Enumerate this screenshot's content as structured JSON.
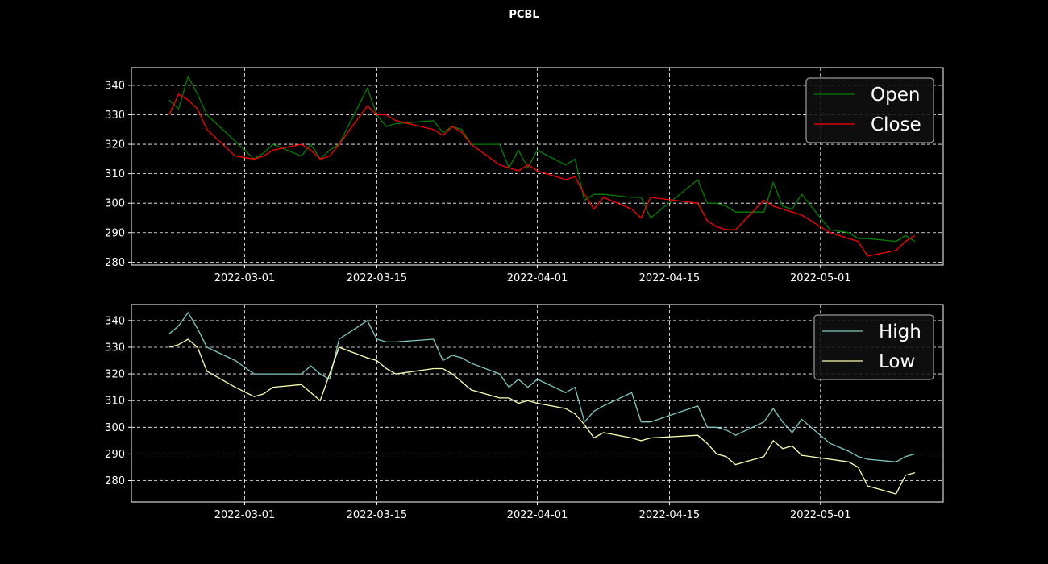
{
  "title": "PCBL",
  "colors": {
    "background": "#000000",
    "open": "#008000",
    "close": "#ff0000",
    "high": "#7fc9c1",
    "low": "#ffffb3",
    "grid": "#ffffff"
  },
  "chart_data": [
    {
      "type": "line",
      "title": "",
      "xlabel": "",
      "ylabel": "",
      "ylim": [
        279,
        346
      ],
      "xlim": [
        "2022-02-17",
        "2022-05-14"
      ],
      "x_ticks": [
        "2022-03-01",
        "2022-03-15",
        "2022-04-01",
        "2022-04-15",
        "2022-05-01"
      ],
      "y_ticks": [
        280,
        290,
        300,
        310,
        320,
        330,
        340
      ],
      "grid": true,
      "legend": "top-right",
      "series": [
        {
          "name": "Open",
          "x": [
            "2022-02-21",
            "2022-02-22",
            "2022-02-23",
            "2022-02-24",
            "2022-02-25",
            "2022-02-28",
            "2022-03-02",
            "2022-03-03",
            "2022-03-04",
            "2022-03-07",
            "2022-03-08",
            "2022-03-09",
            "2022-03-10",
            "2022-03-11",
            "2022-03-14",
            "2022-03-15",
            "2022-03-16",
            "2022-03-17",
            "2022-03-21",
            "2022-03-22",
            "2022-03-23",
            "2022-03-24",
            "2022-03-25",
            "2022-03-28",
            "2022-03-29",
            "2022-03-30",
            "2022-03-31",
            "2022-04-01",
            "2022-04-04",
            "2022-04-05",
            "2022-04-06",
            "2022-04-07",
            "2022-04-08",
            "2022-04-11",
            "2022-04-12",
            "2022-04-13",
            "2022-04-18",
            "2022-04-19",
            "2022-04-20",
            "2022-04-21",
            "2022-04-22",
            "2022-04-25",
            "2022-04-26",
            "2022-04-27",
            "2022-04-28",
            "2022-04-29",
            "2022-05-02",
            "2022-05-04",
            "2022-05-05",
            "2022-05-06",
            "2022-05-09",
            "2022-05-10",
            "2022-05-11"
          ],
          "values": [
            335,
            332,
            343,
            337,
            330,
            321,
            315,
            317,
            320,
            316,
            320,
            315,
            318,
            320,
            339,
            330,
            326,
            327,
            328,
            324,
            326,
            325,
            320,
            320,
            312,
            318,
            312,
            318,
            313,
            315,
            301,
            303,
            303,
            302,
            302,
            295,
            308,
            300,
            300,
            299,
            297,
            297,
            307,
            299,
            298,
            303,
            291,
            290,
            288,
            288,
            287,
            289,
            287
          ]
        },
        {
          "name": "Close",
          "x": [
            "2022-02-21",
            "2022-02-22",
            "2022-02-23",
            "2022-02-24",
            "2022-02-25",
            "2022-02-28",
            "2022-03-02",
            "2022-03-03",
            "2022-03-04",
            "2022-03-07",
            "2022-03-08",
            "2022-03-09",
            "2022-03-10",
            "2022-03-11",
            "2022-03-14",
            "2022-03-15",
            "2022-03-16",
            "2022-03-17",
            "2022-03-21",
            "2022-03-22",
            "2022-03-23",
            "2022-03-24",
            "2022-03-25",
            "2022-03-28",
            "2022-03-29",
            "2022-03-30",
            "2022-03-31",
            "2022-04-01",
            "2022-04-04",
            "2022-04-05",
            "2022-04-06",
            "2022-04-07",
            "2022-04-08",
            "2022-04-11",
            "2022-04-12",
            "2022-04-13",
            "2022-04-18",
            "2022-04-19",
            "2022-04-20",
            "2022-04-21",
            "2022-04-22",
            "2022-04-25",
            "2022-04-26",
            "2022-04-27",
            "2022-04-28",
            "2022-04-29",
            "2022-05-02",
            "2022-05-04",
            "2022-05-05",
            "2022-05-06",
            "2022-05-09",
            "2022-05-10",
            "2022-05-11"
          ],
          "values": [
            330,
            337,
            335,
            332,
            325,
            316,
            315,
            316,
            318,
            320,
            318,
            315,
            316,
            320,
            333,
            330,
            330,
            328,
            325,
            323,
            326,
            324,
            320,
            313,
            312,
            311,
            313,
            311,
            308,
            309,
            303,
            298,
            302,
            298,
            295,
            302,
            300,
            294,
            292,
            291,
            291,
            301,
            299,
            298,
            297,
            296,
            290,
            288,
            287,
            282,
            284,
            287,
            289
          ]
        }
      ]
    },
    {
      "type": "line",
      "title": "",
      "xlabel": "",
      "ylabel": "",
      "ylim": [
        272,
        346
      ],
      "xlim": [
        "2022-02-17",
        "2022-05-14"
      ],
      "x_ticks": [
        "2022-03-01",
        "2022-03-15",
        "2022-04-01",
        "2022-04-15",
        "2022-05-01"
      ],
      "y_ticks": [
        280,
        290,
        300,
        310,
        320,
        330,
        340
      ],
      "grid": true,
      "legend": "top-right",
      "series": [
        {
          "name": "High",
          "x": [
            "2022-02-21",
            "2022-02-22",
            "2022-02-23",
            "2022-02-24",
            "2022-02-25",
            "2022-02-28",
            "2022-03-02",
            "2022-03-03",
            "2022-03-04",
            "2022-03-07",
            "2022-03-08",
            "2022-03-09",
            "2022-03-10",
            "2022-03-11",
            "2022-03-14",
            "2022-03-15",
            "2022-03-16",
            "2022-03-17",
            "2022-03-21",
            "2022-03-22",
            "2022-03-23",
            "2022-03-24",
            "2022-03-25",
            "2022-03-28",
            "2022-03-29",
            "2022-03-30",
            "2022-03-31",
            "2022-04-01",
            "2022-04-04",
            "2022-04-05",
            "2022-04-06",
            "2022-04-07",
            "2022-04-08",
            "2022-04-11",
            "2022-04-12",
            "2022-04-13",
            "2022-04-18",
            "2022-04-19",
            "2022-04-20",
            "2022-04-21",
            "2022-04-22",
            "2022-04-25",
            "2022-04-26",
            "2022-04-27",
            "2022-04-28",
            "2022-04-29",
            "2022-05-02",
            "2022-05-04",
            "2022-05-05",
            "2022-05-06",
            "2022-05-09",
            "2022-05-10",
            "2022-05-11"
          ],
          "values": [
            335,
            338,
            343,
            337,
            330,
            325,
            320,
            320,
            320,
            320,
            323,
            320,
            318,
            333,
            340,
            333,
            332,
            332,
            333,
            325,
            327,
            326,
            324,
            320,
            315,
            318,
            315,
            318,
            313,
            315,
            302,
            306,
            308,
            313,
            302,
            302,
            308,
            300,
            300,
            299,
            297,
            302,
            307,
            302,
            298,
            303,
            294,
            291,
            289,
            288,
            287,
            289,
            290
          ]
        },
        {
          "name": "Low",
          "x": [
            "2022-02-21",
            "2022-02-22",
            "2022-02-23",
            "2022-02-24",
            "2022-02-25",
            "2022-02-28",
            "2022-03-02",
            "2022-03-03",
            "2022-03-04",
            "2022-03-07",
            "2022-03-08",
            "2022-03-09",
            "2022-03-10",
            "2022-03-11",
            "2022-03-14",
            "2022-03-15",
            "2022-03-16",
            "2022-03-17",
            "2022-03-21",
            "2022-03-22",
            "2022-03-23",
            "2022-03-24",
            "2022-03-25",
            "2022-03-28",
            "2022-03-29",
            "2022-03-30",
            "2022-03-31",
            "2022-04-01",
            "2022-04-04",
            "2022-04-05",
            "2022-04-06",
            "2022-04-07",
            "2022-04-08",
            "2022-04-11",
            "2022-04-12",
            "2022-04-13",
            "2022-04-18",
            "2022-04-19",
            "2022-04-20",
            "2022-04-21",
            "2022-04-22",
            "2022-04-25",
            "2022-04-26",
            "2022-04-27",
            "2022-04-28",
            "2022-04-29",
            "2022-05-02",
            "2022-05-04",
            "2022-05-05",
            "2022-05-06",
            "2022-05-09",
            "2022-05-10",
            "2022-05-11"
          ],
          "values": [
            330,
            331,
            333,
            330,
            321,
            315,
            311.5,
            312.5,
            315,
            316,
            313,
            310,
            320,
            330,
            326,
            325,
            322,
            320,
            322,
            322,
            320,
            317,
            314,
            311,
            311,
            309,
            310,
            309,
            307,
            305,
            301,
            296,
            298,
            296,
            295,
            296,
            297,
            294,
            290,
            289,
            286,
            289,
            295,
            292,
            293,
            289.5,
            288,
            287,
            285,
            278,
            275,
            282,
            283
          ]
        }
      ]
    }
  ]
}
